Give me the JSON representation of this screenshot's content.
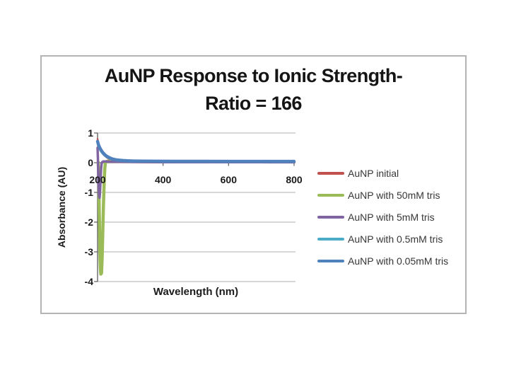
{
  "slide": {
    "background": "#ffffff"
  },
  "chart": {
    "title_line1": "AuNP Response to Ionic Strength-",
    "title_line2": "Ratio = 166",
    "frame_border_color": "#b4b4b4"
  },
  "chart_data": {
    "type": "line",
    "title": "AuNP Response to Ionic Strength- Ratio = 166",
    "xlabel": "Wavelength (nm)",
    "ylabel": "Absorbance (AU)",
    "xlim": [
      200,
      800
    ],
    "ylim": [
      -4,
      1
    ],
    "xticks": [
      200,
      400,
      600,
      800
    ],
    "yticks": [
      1,
      0,
      -1,
      -2,
      -3,
      -4
    ],
    "grid": true,
    "legend_position": "right-of-plot",
    "axis_color": "#595959",
    "gridline_color": "#bfbfbf",
    "series": [
      {
        "name": "AuNP initial",
        "color": "#C0504D",
        "width": 2.5,
        "points": [
          [
            200,
            0.8
          ],
          [
            202,
            0.68
          ],
          [
            204,
            0.59
          ],
          [
            206,
            0.52
          ],
          [
            208,
            0.46
          ],
          [
            210,
            0.41
          ],
          [
            213,
            0.35
          ],
          [
            216,
            0.3
          ],
          [
            220,
            0.25
          ],
          [
            225,
            0.2
          ],
          [
            230,
            0.16
          ],
          [
            236,
            0.12
          ],
          [
            243,
            0.09
          ],
          [
            250,
            0.07
          ],
          [
            260,
            0.05
          ],
          [
            272,
            0.035
          ],
          [
            285,
            0.025
          ],
          [
            300,
            0.02
          ],
          [
            330,
            0.015
          ],
          [
            370,
            0.01
          ],
          [
            420,
            0.008
          ],
          [
            500,
            0.006
          ],
          [
            600,
            0.005
          ],
          [
            700,
            0.005
          ],
          [
            800,
            0.005
          ]
        ]
      },
      {
        "name": "AuNP with 50mM tris",
        "color": "#9BBB59",
        "width": 4.5,
        "points": [
          [
            202,
            0.02
          ],
          [
            203,
            -0.25
          ],
          [
            204,
            -0.8
          ],
          [
            205,
            -1.5
          ],
          [
            206,
            -2.2
          ],
          [
            207,
            -2.85
          ],
          [
            208,
            -3.35
          ],
          [
            209,
            -3.65
          ],
          [
            210,
            -3.75
          ],
          [
            212,
            -3.72
          ],
          [
            214,
            -3.2
          ],
          [
            216,
            -2.35
          ],
          [
            218,
            -1.45
          ],
          [
            220,
            -0.7
          ],
          [
            222,
            -0.2
          ],
          [
            224,
            0.0
          ],
          [
            227,
            0.04
          ],
          [
            232,
            0.05
          ],
          [
            245,
            0.05
          ],
          [
            270,
            0.045
          ],
          [
            300,
            0.04
          ],
          [
            400,
            0.035
          ],
          [
            550,
            0.03
          ],
          [
            700,
            0.03
          ],
          [
            800,
            0.03
          ]
        ]
      },
      {
        "name": "AuNP with 5mM tris",
        "color": "#8064A2",
        "width": 3.5,
        "points": [
          [
            200,
            0.5
          ],
          [
            201,
            0.15
          ],
          [
            202,
            -0.35
          ],
          [
            203,
            -0.75
          ],
          [
            204,
            -1.02
          ],
          [
            205,
            -1.15
          ],
          [
            206,
            -1.18
          ],
          [
            207,
            -1.08
          ],
          [
            208,
            -0.88
          ],
          [
            209,
            -0.62
          ],
          [
            210,
            -0.38
          ],
          [
            211,
            -0.18
          ],
          [
            212,
            -0.05
          ],
          [
            214,
            0.02
          ],
          [
            217,
            0.04
          ],
          [
            225,
            0.04
          ],
          [
            240,
            0.035
          ],
          [
            270,
            0.03
          ],
          [
            300,
            0.025
          ],
          [
            400,
            0.02
          ],
          [
            550,
            0.018
          ],
          [
            700,
            0.016
          ],
          [
            800,
            0.015
          ]
        ]
      },
      {
        "name": "AuNP with 0.5mM tris",
        "color": "#4BACC6",
        "width": 3,
        "points": [
          [
            200,
            0.66
          ],
          [
            203,
            0.55
          ],
          [
            206,
            0.47
          ],
          [
            210,
            0.39
          ],
          [
            214,
            0.33
          ],
          [
            218,
            0.28
          ],
          [
            223,
            0.23
          ],
          [
            228,
            0.19
          ],
          [
            234,
            0.155
          ],
          [
            240,
            0.125
          ],
          [
            248,
            0.1
          ],
          [
            256,
            0.08
          ],
          [
            266,
            0.065
          ],
          [
            278,
            0.055
          ],
          [
            292,
            0.045
          ],
          [
            310,
            0.04
          ],
          [
            340,
            0.037
          ],
          [
            380,
            0.035
          ],
          [
            440,
            0.033
          ],
          [
            520,
            0.032
          ],
          [
            620,
            0.031
          ],
          [
            720,
            0.03
          ],
          [
            800,
            0.03
          ]
        ]
      },
      {
        "name": "AuNP with 0.05mM tris",
        "color": "#4F81BD",
        "width": 4.5,
        "points": [
          [
            200,
            0.72
          ],
          [
            203,
            0.6
          ],
          [
            206,
            0.52
          ],
          [
            210,
            0.44
          ],
          [
            214,
            0.37
          ],
          [
            218,
            0.32
          ],
          [
            223,
            0.26
          ],
          [
            228,
            0.22
          ],
          [
            234,
            0.18
          ],
          [
            240,
            0.15
          ],
          [
            248,
            0.12
          ],
          [
            256,
            0.1
          ],
          [
            266,
            0.085
          ],
          [
            278,
            0.073
          ],
          [
            292,
            0.065
          ],
          [
            310,
            0.058
          ],
          [
            340,
            0.053
          ],
          [
            380,
            0.05
          ],
          [
            440,
            0.048
          ],
          [
            520,
            0.047
          ],
          [
            620,
            0.046
          ],
          [
            720,
            0.046
          ],
          [
            800,
            0.046
          ]
        ]
      }
    ]
  }
}
